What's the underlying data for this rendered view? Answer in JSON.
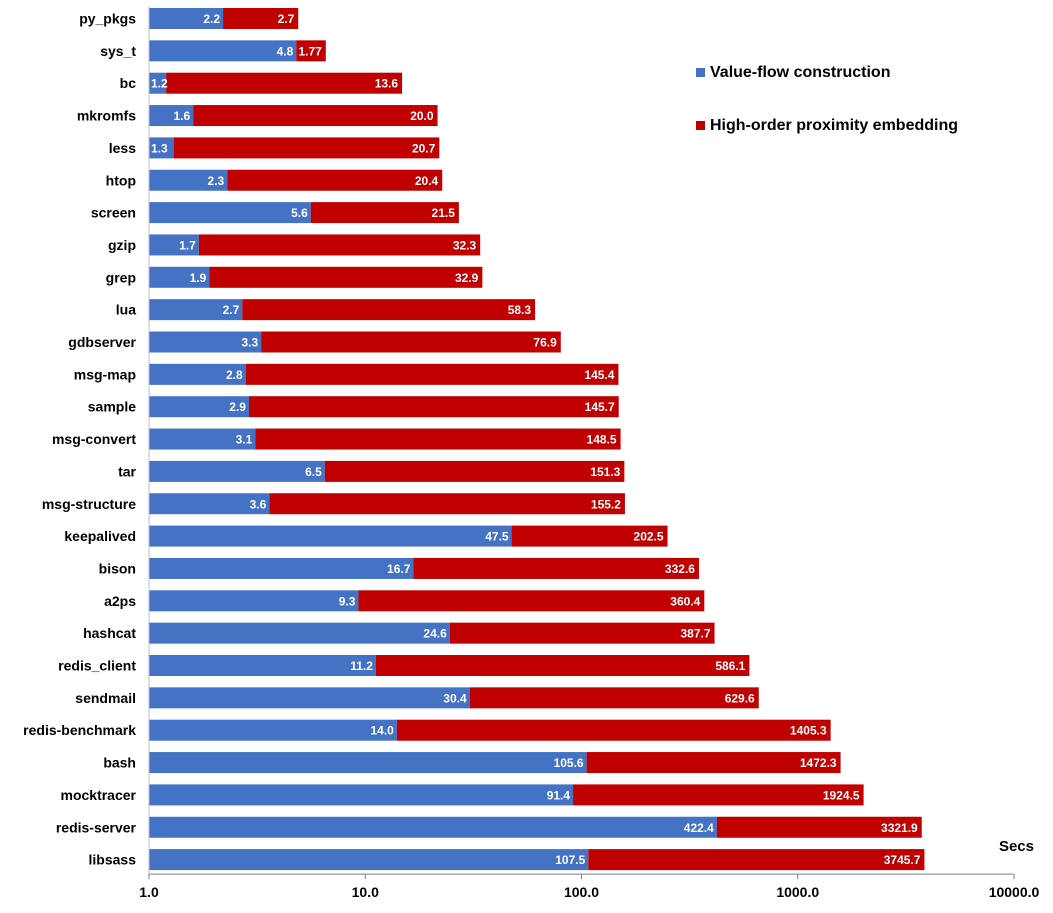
{
  "chart_data": {
    "type": "bar",
    "orientation": "horizontal",
    "stacked": true,
    "x_scale": "log",
    "xlim": [
      1.0,
      10000.0
    ],
    "xticks": [
      "1.0",
      "10.0",
      "100.0",
      "1000.0",
      "10000.0"
    ],
    "xlabel": "Secs",
    "grid": false,
    "legend_position": "top-right",
    "categories": [
      "py_pkgs",
      "sys_t",
      "bc",
      "mkromfs",
      "less",
      "htop",
      "screen",
      "gzip",
      "grep",
      "lua",
      "gdbserver",
      "msg-map",
      "sample",
      "msg-convert",
      "tar",
      "msg-structure",
      "keepalived",
      "bison",
      "a2ps",
      "hashcat",
      "redis_client",
      "sendmail",
      "redis-benchmark",
      "bash",
      "mocktracer",
      "redis-server",
      "libsass"
    ],
    "series": [
      {
        "name": "Value-flow construction",
        "color": "#4472c4",
        "values": [
          2.2,
          4.8,
          1.2,
          1.6,
          1.3,
          2.3,
          5.6,
          1.7,
          1.9,
          2.7,
          3.3,
          2.8,
          2.9,
          3.1,
          6.5,
          3.6,
          47.5,
          16.7,
          9.3,
          24.6,
          11.2,
          30.4,
          14.0,
          105.6,
          91.4,
          422.4,
          107.5
        ],
        "labels": [
          "2.2",
          "4.8",
          "1.2",
          "1.6",
          "1.3",
          "2.3",
          "5.6",
          "1.7",
          "1.9",
          "2.7",
          "3.3",
          "2.8",
          "2.9",
          "3.1",
          "6.5",
          "3.6",
          "47.5",
          "16.7",
          "9.3",
          "24.6",
          "11.2",
          "30.4",
          "14.0",
          "105.6",
          "91.4",
          "422.4",
          "107.5"
        ]
      },
      {
        "name": "High-order proximity embedding",
        "color": "#c00000",
        "values": [
          2.7,
          1.77,
          13.6,
          20.0,
          20.7,
          20.4,
          21.5,
          32.3,
          32.9,
          58.3,
          76.9,
          145.4,
          145.7,
          148.5,
          151.3,
          155.2,
          202.5,
          332.6,
          360.4,
          387.7,
          586.1,
          629.6,
          1405.3,
          1472.3,
          1924.5,
          3321.9,
          3745.7
        ],
        "labels": [
          "2.7",
          "1.77",
          "13.6",
          "20.0",
          "20.7",
          "20.4",
          "21.5",
          "32.3",
          "32.9",
          "58.3",
          "76.9",
          "145.4",
          "145.7",
          "148.5",
          "151.3",
          "155.2",
          "202.5",
          "332.6",
          "360.4",
          "387.7",
          "586.1",
          "629.6",
          "1405.3",
          "1472.3",
          "1924.5",
          "3321.9",
          "3745.7"
        ]
      }
    ]
  }
}
